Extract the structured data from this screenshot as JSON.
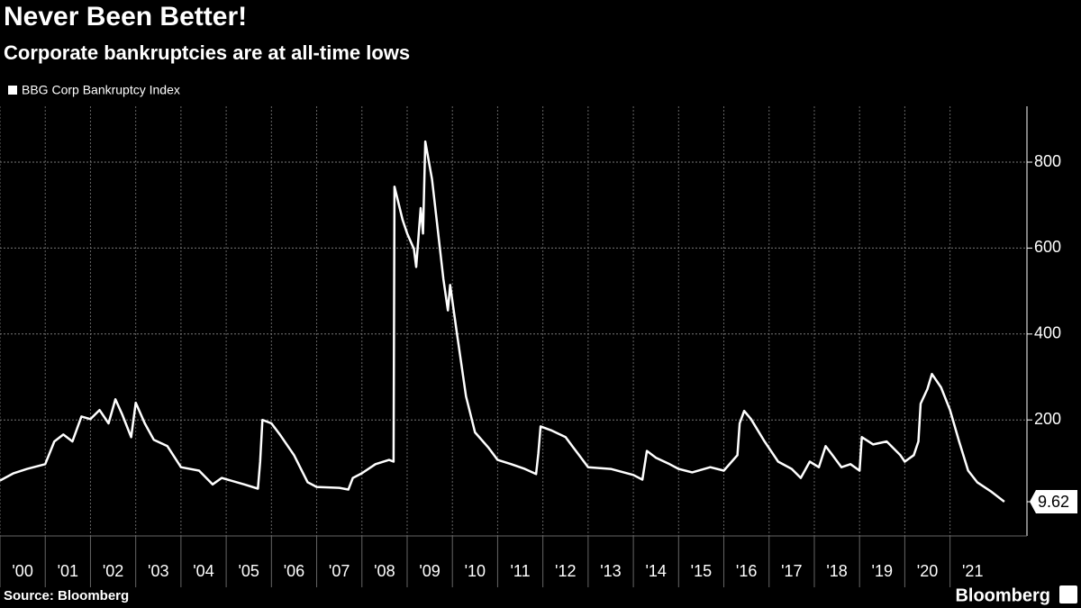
{
  "chart_data": {
    "type": "line",
    "title": "Never Been Better!",
    "subtitle": "Corporate bankruptcies are at all-time lows",
    "source": "Source: Bloomberg",
    "brand": "Bloomberg",
    "series": [
      {
        "name": "BBG Corp Bankruptcy Index",
        "color": "#ffffff",
        "x": [
          2000.0,
          2000.3,
          2000.6,
          2001.0,
          2001.2,
          2001.4,
          2001.6,
          2001.8,
          2002.0,
          2002.2,
          2002.4,
          2002.55,
          2002.7,
          2002.9,
          2003.0,
          2003.2,
          2003.4,
          2003.7,
          2004.0,
          2004.4,
          2004.7,
          2004.9,
          2005.4,
          2005.7,
          2005.75,
          2005.8,
          2006.0,
          2006.2,
          2006.5,
          2006.8,
          2007.0,
          2007.5,
          2007.7,
          2007.8,
          2008.0,
          2008.3,
          2008.6,
          2008.7,
          2008.72,
          2008.9,
          2009.0,
          2009.15,
          2009.2,
          2009.3,
          2009.35,
          2009.4,
          2009.55,
          2009.8,
          2009.9,
          2009.95,
          2010.1,
          2010.3,
          2010.5,
          2010.8,
          2011.0,
          2011.3,
          2011.6,
          2011.85,
          2011.9,
          2011.95,
          2012.2,
          2012.5,
          2012.8,
          2013.0,
          2013.5,
          2014.0,
          2014.2,
          2014.3,
          2014.5,
          2014.8,
          2015.0,
          2015.3,
          2015.7,
          2016.0,
          2016.3,
          2016.35,
          2016.45,
          2016.6,
          2016.9,
          2017.2,
          2017.5,
          2017.7,
          2017.9,
          2018.1,
          2018.25,
          2018.4,
          2018.6,
          2018.8,
          2019.0,
          2019.05,
          2019.3,
          2019.6,
          2019.9,
          2020.0,
          2020.2,
          2020.3,
          2020.35,
          2020.5,
          2020.6,
          2020.8,
          2021.0,
          2021.2,
          2021.4,
          2021.6,
          2021.9,
          2022.2
        ],
        "values": [
          59,
          76,
          86,
          97,
          150,
          166,
          150,
          208,
          202,
          223,
          192,
          248,
          213,
          160,
          240,
          192,
          154,
          139,
          90,
          82,
          50,
          65,
          50,
          40,
          103,
          200,
          192,
          164,
          118,
          55,
          44,
          42,
          38,
          65,
          76,
          97,
          107,
          103,
          743,
          665,
          634,
          598,
          556,
          693,
          634,
          848,
          760,
          528,
          455,
          514,
          402,
          255,
          171,
          135,
          107,
          97,
          86,
          74,
          122,
          185,
          175,
          160,
          118,
          90,
          86,
          72,
          61,
          128,
          112,
          97,
          86,
          78,
          90,
          82,
          118,
          192,
          221,
          202,
          150,
          103,
          86,
          65,
          103,
          90,
          139,
          118,
          90,
          97,
          82,
          160,
          143,
          150,
          118,
          103,
          118,
          150,
          238,
          272,
          307,
          276,
          223,
          150,
          82,
          55,
          34,
          9.62
        ]
      }
    ],
    "xlim": [
      2000,
      2022.7
    ],
    "xticks": [
      {
        "value": 2000,
        "label": "'00"
      },
      {
        "value": 2001,
        "label": "'01"
      },
      {
        "value": 2002,
        "label": "'02"
      },
      {
        "value": 2003,
        "label": "'03"
      },
      {
        "value": 2004,
        "label": "'04"
      },
      {
        "value": 2005,
        "label": "'05"
      },
      {
        "value": 2006,
        "label": "'06"
      },
      {
        "value": 2007,
        "label": "'07"
      },
      {
        "value": 2008,
        "label": "'08"
      },
      {
        "value": 2009,
        "label": "'09"
      },
      {
        "value": 2010,
        "label": "'10"
      },
      {
        "value": 2011,
        "label": "'11"
      },
      {
        "value": 2012,
        "label": "'12"
      },
      {
        "value": 2013,
        "label": "'13"
      },
      {
        "value": 2014,
        "label": "'14"
      },
      {
        "value": 2015,
        "label": "'15"
      },
      {
        "value": 2016,
        "label": "'16"
      },
      {
        "value": 2017,
        "label": "'17"
      },
      {
        "value": 2018,
        "label": "'18"
      },
      {
        "value": 2019,
        "label": "'19"
      },
      {
        "value": 2020,
        "label": "'20"
      },
      {
        "value": 2021,
        "label": "'21"
      }
    ],
    "ylim": [
      -70,
      930
    ],
    "yticks": [
      200,
      400,
      600,
      800
    ],
    "grid": true
  }
}
